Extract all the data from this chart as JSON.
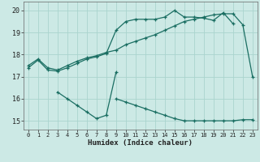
{
  "xlabel": "Humidex (Indice chaleur)",
  "bg_color": "#cce9e5",
  "grid_color": "#aad4ce",
  "line_color": "#1a6e62",
  "xlim": [
    -0.5,
    23.5
  ],
  "ylim": [
    14.6,
    20.4
  ],
  "yticks": [
    15,
    16,
    17,
    18,
    19,
    20
  ],
  "xticks": [
    0,
    1,
    2,
    3,
    4,
    5,
    6,
    7,
    8,
    9,
    10,
    11,
    12,
    13,
    14,
    15,
    16,
    17,
    18,
    19,
    20,
    21,
    22,
    23
  ],
  "line1_x": [
    0,
    1,
    2,
    3,
    4,
    5,
    6,
    7,
    8,
    9,
    10,
    11,
    12,
    13,
    14,
    15,
    16,
    17,
    18,
    19,
    20,
    21,
    22,
    23
  ],
  "line1_y": [
    17.5,
    17.8,
    17.4,
    17.3,
    17.5,
    17.7,
    17.85,
    17.95,
    18.1,
    18.2,
    18.45,
    18.6,
    18.75,
    18.9,
    19.1,
    19.3,
    19.5,
    19.6,
    19.7,
    19.8,
    19.85,
    19.85,
    19.35,
    17.0
  ],
  "line2_x": [
    0,
    1,
    2,
    3,
    4,
    5,
    6,
    7,
    8,
    9,
    10,
    11,
    12,
    13,
    14,
    15,
    16,
    17,
    18,
    19,
    20,
    21
  ],
  "line2_y": [
    17.4,
    17.75,
    17.3,
    17.25,
    17.4,
    17.6,
    17.8,
    17.9,
    18.05,
    19.1,
    19.5,
    19.6,
    19.6,
    19.6,
    19.7,
    20.0,
    19.7,
    19.7,
    19.65,
    19.55,
    19.9,
    19.4
  ],
  "line3_x": [
    3,
    4,
    5,
    6,
    7,
    8,
    9
  ],
  "line3_y": [
    16.3,
    16.0,
    15.7,
    15.4,
    15.1,
    15.25,
    17.2
  ],
  "line4_x": [
    9,
    10,
    11,
    12,
    13,
    14,
    15,
    16,
    17,
    18,
    19,
    20,
    21,
    22,
    23
  ],
  "line4_y": [
    16.0,
    15.85,
    15.7,
    15.55,
    15.4,
    15.25,
    15.1,
    15.0,
    15.0,
    15.0,
    15.0,
    15.0,
    15.0,
    15.05,
    15.05
  ]
}
